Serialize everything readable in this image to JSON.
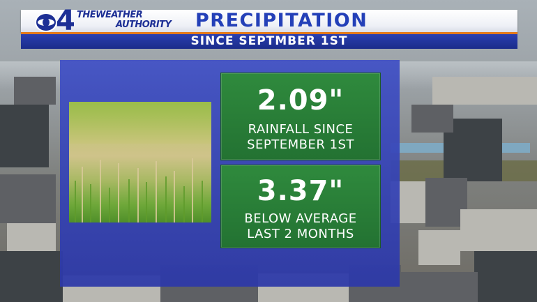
{
  "header": {
    "title": "PRECIPITATION",
    "subtitle": "SINCE SEPTMBER 1ST"
  },
  "logo": {
    "channel": "4",
    "tagline_line1": "THEWEATHER",
    "tagline_line2": "AUTHORITY",
    "network_icon": "cbs-eye-icon"
  },
  "stats": [
    {
      "value": "2.09\"",
      "label_line1": "RAINFALL SINCE",
      "label_line2": "SEPTEMBER 1ST"
    },
    {
      "value": "3.37\"",
      "label_line1": "BELOW AVERAGE",
      "label_line2": "LAST 2 MONTHS"
    }
  ],
  "colors": {
    "brand_blue": "#1d2f95",
    "title_blue": "#2440b8",
    "accent_orange": "#e57a1a",
    "panel_blue": "#3f4fc4",
    "stat_green": "#2f8a3d"
  }
}
